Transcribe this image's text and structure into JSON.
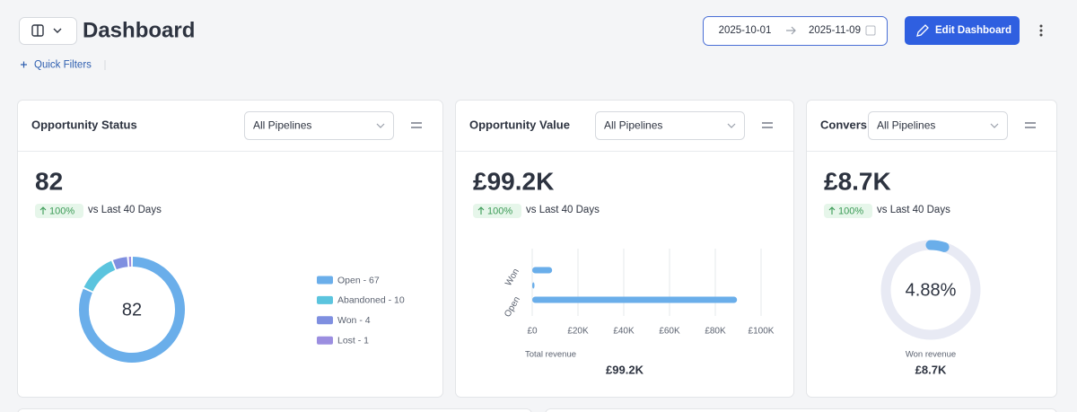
{
  "header": {
    "title": "Dashboard",
    "date_start": "2025-10-01",
    "date_end": "2025-11-09",
    "edit_button": "Edit Dashboard",
    "quick_filters": "Quick Filters"
  },
  "cards": [
    {
      "title": "Opportunity Status",
      "filter": "All Pipelines",
      "metric": "82",
      "change": "100%",
      "comparison": "vs Last 40 Days",
      "chart_data": {
        "type": "donut",
        "center_label": "82",
        "categories": [
          "Open",
          "Abandoned",
          "Won",
          "Lost"
        ],
        "values": [
          67,
          10,
          4,
          1
        ],
        "value_labels": [
          "Open - 67",
          "Abandoned - 10",
          "Won - 4",
          "Lost - 1"
        ],
        "colors": [
          "#6aaeea",
          "#5bc4de",
          "#7f8fe0",
          "#9b8ee0"
        ]
      }
    },
    {
      "title": "Opportunity Value",
      "filter": "All Pipelines",
      "metric": "£99.2K",
      "change": "100%",
      "comparison": "vs Last 40 Days",
      "chart_data": {
        "type": "hbar",
        "categories": [
          "Won",
          null,
          "Open"
        ],
        "values": [
          8700,
          1000,
          89500
        ],
        "color": "#6aaeea",
        "xlim": [
          0,
          100000
        ],
        "xticks": [
          {
            "value": 0,
            "label": "£0"
          },
          {
            "value": 20000,
            "label": "£20K"
          },
          {
            "value": 40000,
            "label": "£40K"
          },
          {
            "value": 60000,
            "label": "£60K"
          },
          {
            "value": 80000,
            "label": "£80K"
          },
          {
            "value": 100000,
            "label": "£100K"
          }
        ],
        "grid": true,
        "xlabel": "Total revenue",
        "total": "£99.2K"
      }
    },
    {
      "title": "Convers",
      "filter": "All Pipelines",
      "metric": "£8.7K",
      "change": "100%",
      "comparison": "vs Last 40 Days",
      "chart_data": {
        "type": "gauge",
        "values": [
          4.88
        ],
        "value_labels": [
          "4.88%"
        ],
        "ylim": [
          0,
          100
        ],
        "color": "#6aaeea",
        "track_color": "#e8eaf4",
        "label": "Won revenue",
        "total": "£8.7K"
      }
    }
  ]
}
